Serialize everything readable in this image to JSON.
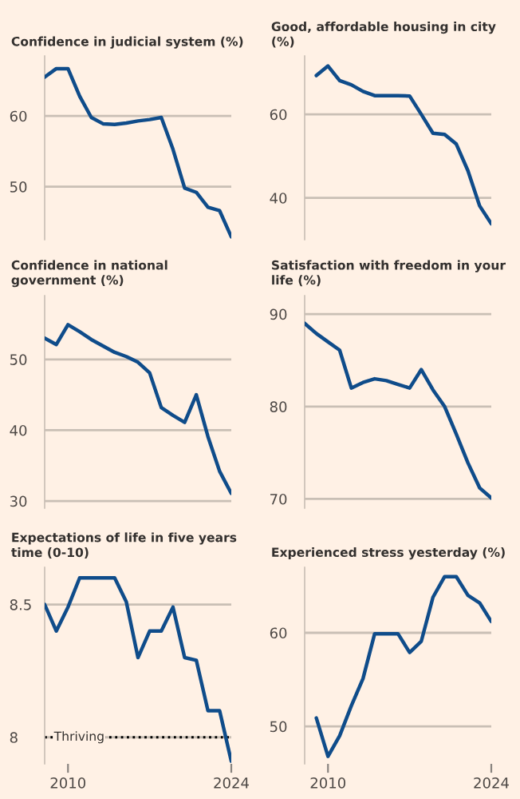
{
  "chart_data": [
    {
      "type": "line",
      "title": "Confidence in judicial system (%)",
      "x": [
        2008,
        2009,
        2010,
        2011,
        2012,
        2013,
        2014,
        2015,
        2016,
        2017,
        2018,
        2019,
        2020,
        2021,
        2022,
        2023,
        2024
      ],
      "series": [
        {
          "color": "#0f4c8a",
          "values": [
            65.5,
            66.7,
            66.7,
            62.8,
            59.8,
            58.9,
            58.8,
            59.0,
            59.3,
            59.5,
            59.8,
            55.3,
            49.8,
            49.2,
            47.1,
            46.6,
            42.9
          ]
        }
      ],
      "xlim": [
        2008,
        2024
      ],
      "ylim": [
        42.5,
        68.5
      ],
      "yticks": [
        50,
        60
      ],
      "grid": "y",
      "tick_labels": "y",
      "marker": "none",
      "line_style": "solid"
    },
    {
      "type": "line",
      "title": "Good, affordable housing in city\n(%)",
      "x": [
        2009,
        2010,
        2011,
        2012,
        2013,
        2014,
        2015,
        2016,
        2017,
        2018,
        2019,
        2020,
        2021,
        2022,
        2023,
        2024
      ],
      "series": [
        {
          "color": "#0f4c8a",
          "values": [
            69.3,
            71.6,
            68.1,
            67.1,
            65.5,
            64.5,
            64.5,
            64.5,
            64.4,
            60.0,
            55.5,
            55.2,
            52.9,
            46.5,
            38.1,
            33.8
          ]
        }
      ],
      "xlim": [
        2008,
        2024
      ],
      "ylim": [
        30,
        74
      ],
      "yticks": [
        40,
        60
      ],
      "grid": "y",
      "tick_labels": "y",
      "marker": "none",
      "line_style": "solid"
    },
    {
      "type": "line",
      "title": "Confidence in national\ngovernment (%)",
      "x": [
        2008,
        2009,
        2010,
        2011,
        2012,
        2013,
        2014,
        2015,
        2016,
        2017,
        2018,
        2019,
        2020,
        2021,
        2022,
        2023,
        2024
      ],
      "series": [
        {
          "color": "#0f4c8a",
          "values": [
            53.0,
            52.1,
            54.9,
            53.9,
            52.8,
            51.9,
            51.0,
            50.4,
            49.6,
            48.1,
            43.2,
            42.1,
            41.1,
            45.0,
            39.1,
            34.2,
            31.1
          ]
        }
      ],
      "xlim": [
        2008,
        2024
      ],
      "ylim": [
        29,
        59
      ],
      "yticks": [
        30,
        40,
        50
      ],
      "grid": "y",
      "tick_labels": "y",
      "marker": "none",
      "line_style": "solid"
    },
    {
      "type": "line",
      "title": "Satisfaction with freedom in your\nlife (%)",
      "x": [
        2008,
        2009,
        2010,
        2011,
        2012,
        2013,
        2014,
        2015,
        2016,
        2017,
        2018,
        2019,
        2020,
        2021,
        2022,
        2023,
        2024
      ],
      "series": [
        {
          "color": "#0f4c8a",
          "values": [
            89.0,
            87.9,
            87.0,
            86.1,
            82.0,
            82.6,
            83.0,
            82.8,
            82.4,
            82.0,
            84.0,
            81.8,
            80.0,
            77.0,
            73.9,
            71.2,
            70.1
          ]
        }
      ],
      "xlim": [
        2008,
        2024
      ],
      "ylim": [
        69,
        92
      ],
      "yticks": [
        70,
        80,
        90
      ],
      "grid": "y",
      "tick_labels": "y",
      "marker": "none",
      "line_style": "solid"
    },
    {
      "type": "line",
      "title": "Expectations of life in five years\ntime (0-10)",
      "x": [
        2008,
        2009,
        2010,
        2011,
        2012,
        2013,
        2014,
        2015,
        2016,
        2017,
        2018,
        2019,
        2020,
        2021,
        2022,
        2023,
        2024
      ],
      "series": [
        {
          "color": "#0f4c8a",
          "values": [
            8.5,
            8.4,
            8.49,
            8.6,
            8.6,
            8.6,
            8.6,
            8.51,
            8.3,
            8.4,
            8.4,
            8.49,
            8.3,
            8.29,
            8.1,
            8.1,
            7.91
          ]
        }
      ],
      "xlim": [
        2008,
        2024
      ],
      "xticks": [
        2010,
        2024
      ],
      "ylim": [
        7.9,
        8.64
      ],
      "yticks": [
        8,
        8.5
      ],
      "grid": "y",
      "marker": "none",
      "line_style": "solid",
      "ref_lines": [
        {
          "axis": "y",
          "value": 8,
          "label": "Thriving",
          "color": "#000000",
          "line_style": "dotted"
        }
      ]
    },
    {
      "type": "line",
      "title": "Experienced stress yesterday (%)",
      "x": [
        2009,
        2010,
        2011,
        2012,
        2013,
        2014,
        2015,
        2016,
        2017,
        2018,
        2019,
        2020,
        2021,
        2022,
        2023,
        2024
      ],
      "series": [
        {
          "color": "#0f4c8a",
          "values": [
            50.9,
            46.8,
            49.0,
            52.2,
            55.1,
            59.9,
            59.9,
            59.9,
            57.9,
            59.1,
            63.8,
            66.0,
            66.0,
            64.0,
            63.2,
            61.2
          ]
        }
      ],
      "xlim": [
        2008,
        2024
      ],
      "xticks": [
        2010,
        2024
      ],
      "ylim": [
        46,
        67
      ],
      "yticks": [
        50,
        60
      ],
      "grid": "y",
      "marker": "none",
      "line_style": "solid"
    }
  ]
}
